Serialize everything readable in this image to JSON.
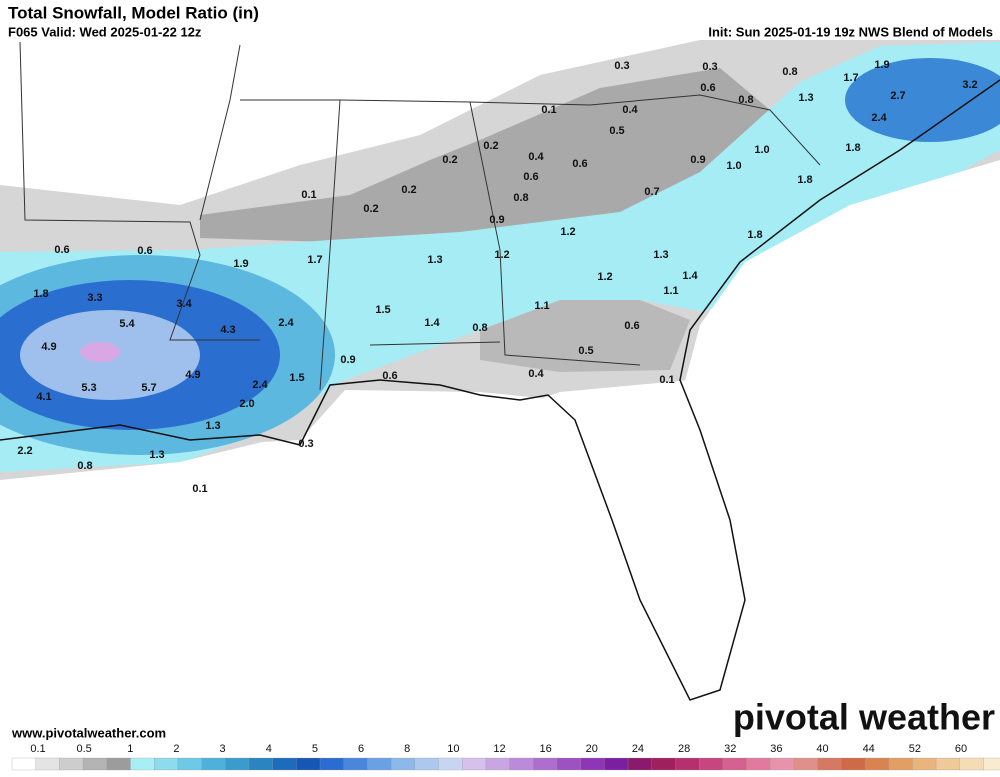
{
  "header": {
    "title": "Total Snowfall, Model Ratio (in)",
    "valid": "F065 Valid: Wed 2025-01-22 12z",
    "init": "Init: Sun 2025-01-19 19z NWS Blend of Models"
  },
  "map": {
    "labels": [
      "0.3",
      "0.3",
      "0.8",
      "1.7",
      "1.9",
      "0.6",
      "0.8",
      "1.3",
      "2.7",
      "3.2",
      "0.1",
      "0.4",
      "2.4",
      "0.5",
      "0.2",
      "1.8",
      "0.4",
      "0.2",
      "0.6",
      "0.9",
      "1.0",
      "1.0",
      "0.6",
      "0.2",
      "0.1",
      "0.7",
      "1.8",
      "0.8",
      "0.2",
      "0.9",
      "1.2",
      "1.8",
      "0.6",
      "0.6",
      "1.7",
      "1.9",
      "1.3",
      "1.2",
      "1.3",
      "1.4",
      "1.2",
      "1.8",
      "3.3",
      "3.4",
      "1.1",
      "1.5",
      "1.1",
      "5.4",
      "4.3",
      "2.4",
      "1.4",
      "0.8",
      "0.6",
      "4.9",
      "0.5",
      "0.9",
      "5.3",
      "5.7",
      "4.9",
      "1.5",
      "2.4",
      "0.6",
      "0.4",
      "0.1",
      "4.1",
      "2.0",
      "1.3",
      "0.3",
      "2.2",
      "1.3",
      "0.8",
      "0.1"
    ]
  },
  "footer": {
    "url": "www.pivotalweather.com",
    "logo": "pivotal weather"
  },
  "legend": {
    "ticks": [
      0.1,
      0.5,
      1,
      2,
      3,
      4,
      5,
      6,
      8,
      10,
      12,
      16,
      20,
      24,
      28,
      32,
      36,
      40,
      44,
      52,
      60
    ],
    "colors": [
      "#ffffff",
      "#e4e4e4",
      "#cdcdcd",
      "#b4b4b4",
      "#9c9c9c",
      "#a8eef6",
      "#8ddcee",
      "#6fc8e6",
      "#4fb1da",
      "#3b9bcc",
      "#2a84c0",
      "#1c6cbd",
      "#1657b5",
      "#2b6cd0",
      "#4a86dc",
      "#6aa0e4",
      "#8cb8ea",
      "#acc8ee",
      "#c6d6f2",
      "#d6c0ec",
      "#c9a5e2",
      "#bb8ad8",
      "#ad6ecd",
      "#9e52c2",
      "#8d36b6",
      "#7b1fa2",
      "#8a1a6e",
      "#a0205e",
      "#b5306e",
      "#c8467f",
      "#d66090",
      "#e07a9f",
      "#e893ab",
      "#e0908a",
      "#d57a62",
      "#cf6a48",
      "#d9844f",
      "#e29e63",
      "#e9b57c",
      "#efca98",
      "#f4dcb4",
      "#f8ebd0"
    ]
  }
}
